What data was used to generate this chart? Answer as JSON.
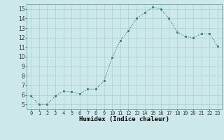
{
  "x": [
    0,
    1,
    2,
    3,
    4,
    5,
    6,
    7,
    8,
    9,
    10,
    11,
    12,
    13,
    14,
    15,
    16,
    17,
    18,
    19,
    20,
    21,
    22,
    23
  ],
  "y": [
    5.9,
    5.0,
    5.0,
    5.9,
    6.4,
    6.3,
    6.1,
    6.6,
    6.6,
    7.5,
    9.9,
    11.7,
    12.7,
    14.0,
    14.6,
    15.2,
    15.0,
    14.0,
    12.6,
    12.1,
    12.0,
    12.4,
    12.4,
    11.1
  ],
  "line_color": "#2e7d6e",
  "marker_color": "#2e7d6e",
  "bg_color": "#cde8eb",
  "grid_color": "#aacfd4",
  "xlabel": "Humidex (Indice chaleur)",
  "ylim": [
    4.5,
    15.5
  ],
  "xlim": [
    -0.5,
    23.5
  ],
  "yticks": [
    5,
    6,
    7,
    8,
    9,
    10,
    11,
    12,
    13,
    14,
    15
  ],
  "xticks": [
    0,
    1,
    2,
    3,
    4,
    5,
    6,
    7,
    8,
    9,
    10,
    11,
    12,
    13,
    14,
    15,
    16,
    17,
    18,
    19,
    20,
    21,
    22,
    23
  ],
  "xlabel_fontsize": 6.5,
  "tick_fontsize": 5,
  "ytick_fontsize": 5.5
}
